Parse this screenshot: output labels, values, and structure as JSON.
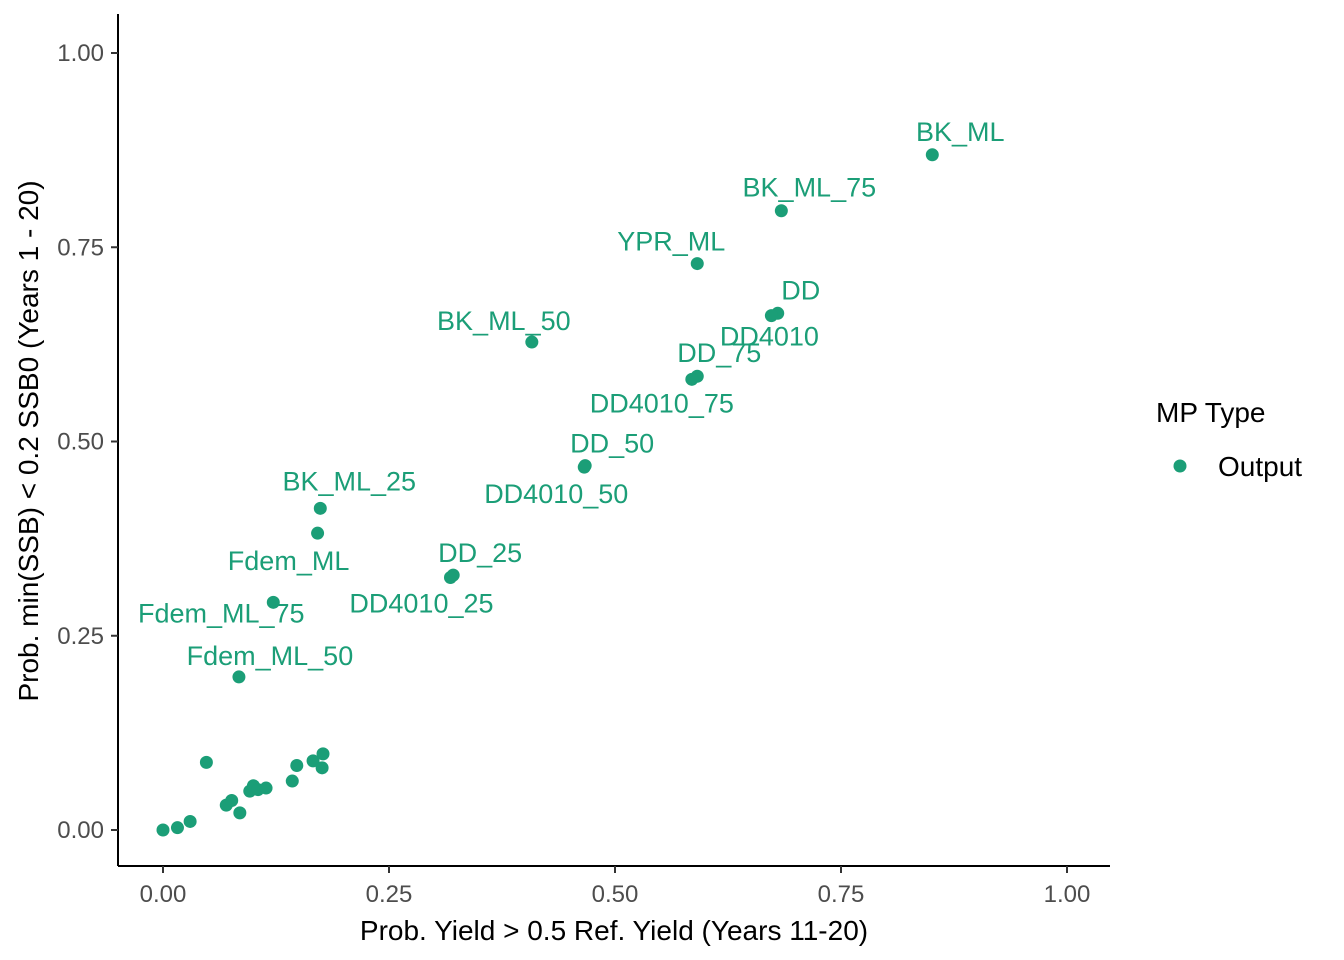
{
  "chart_data": {
    "type": "scatter",
    "title": "",
    "xlabel": "Prob. Yield > 0.5 Ref. Yield (Years 11-20)",
    "ylabel": "Prob. min(SSB) < 0.2 SSB0 (Years 1 - 20)",
    "xlim": [
      -0.05,
      1.05
    ],
    "ylim": [
      -0.05,
      1.05
    ],
    "xticks": [
      0.0,
      0.25,
      0.5,
      0.75,
      1.0
    ],
    "xtick_labels": [
      "0.00",
      "0.25",
      "0.50",
      "0.75",
      "1.00"
    ],
    "yticks": [
      0.0,
      0.25,
      0.5,
      0.75,
      1.0
    ],
    "ytick_labels": [
      "0.00",
      "0.25",
      "0.50",
      "0.75",
      "1.00"
    ],
    "grid": false,
    "color": "#1b9e77",
    "legend": {
      "title": "MP Type",
      "position": "right",
      "entries": [
        "Output"
      ]
    },
    "labeled_points": [
      {
        "label": "BK_ML",
        "x": 0.851,
        "y": 0.869
      },
      {
        "label": "BK_ML_75",
        "x": 0.684,
        "y": 0.797
      },
      {
        "label": "YPR_ML",
        "x": 0.591,
        "y": 0.729
      },
      {
        "label": "DD",
        "x": 0.68,
        "y": 0.665
      },
      {
        "label": "DD4010",
        "x": 0.673,
        "y": 0.662
      },
      {
        "label": "BK_ML_50",
        "x": 0.408,
        "y": 0.628
      },
      {
        "label": "DD_75",
        "x": 0.591,
        "y": 0.584
      },
      {
        "label": "DD4010_75",
        "x": 0.585,
        "y": 0.58
      },
      {
        "label": "DD_50",
        "x": 0.467,
        "y": 0.469
      },
      {
        "label": "DD4010_50",
        "x": 0.466,
        "y": 0.467
      },
      {
        "label": "BK_ML_25",
        "x": 0.174,
        "y": 0.414
      },
      {
        "label": "Fdem_ML",
        "x": 0.171,
        "y": 0.382
      },
      {
        "label": "DD_25",
        "x": 0.321,
        "y": 0.328
      },
      {
        "label": "DD4010_25",
        "x": 0.318,
        "y": 0.325
      },
      {
        "label": "Fdem_ML_75",
        "x": 0.122,
        "y": 0.293
      },
      {
        "label": "Fdem_ML_50",
        "x": 0.084,
        "y": 0.197
      }
    ],
    "unlabeled_points": [
      {
        "x": 0.0,
        "y": 0.0
      },
      {
        "x": 0.016,
        "y": 0.003
      },
      {
        "x": 0.03,
        "y": 0.011
      },
      {
        "x": 0.048,
        "y": 0.087
      },
      {
        "x": 0.07,
        "y": 0.032
      },
      {
        "x": 0.076,
        "y": 0.038
      },
      {
        "x": 0.085,
        "y": 0.022
      },
      {
        "x": 0.096,
        "y": 0.05
      },
      {
        "x": 0.1,
        "y": 0.057
      },
      {
        "x": 0.105,
        "y": 0.052
      },
      {
        "x": 0.114,
        "y": 0.054
      },
      {
        "x": 0.143,
        "y": 0.063
      },
      {
        "x": 0.148,
        "y": 0.083
      },
      {
        "x": 0.166,
        "y": 0.089
      },
      {
        "x": 0.176,
        "y": 0.08
      },
      {
        "x": 0.177,
        "y": 0.098
      }
    ]
  }
}
